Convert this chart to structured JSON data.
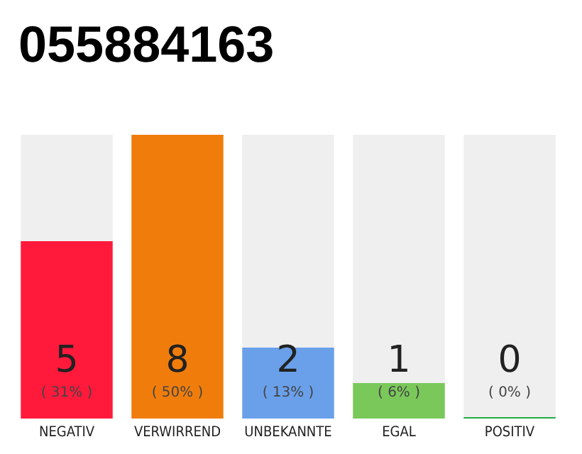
{
  "chart_data": {
    "type": "bar",
    "title": "055884163",
    "stacked": true,
    "categories": [
      "NEGATIV",
      "VERWIRREND",
      "UNBEKANNTE",
      "EGAL",
      "POSITIV"
    ],
    "series": [
      {
        "colors": [
          "#ff1a3c",
          "#f07d0b",
          "#6aa0ea",
          "#7ac85a",
          "#22aa44"
        ],
        "values": [
          5,
          8,
          2,
          1,
          0
        ],
        "value_labels": [
          "5\n( 31% )",
          "8\n( 50% )",
          "2\n( 13% )",
          "1\n( 6% )",
          "0\n( 0% )"
        ]
      },
      {
        "color": "#efefef",
        "values": [
          3,
          0,
          6,
          7,
          8
        ]
      }
    ],
    "ylim": [
      0,
      8
    ],
    "grid": false,
    "tick_labels": "x"
  }
}
